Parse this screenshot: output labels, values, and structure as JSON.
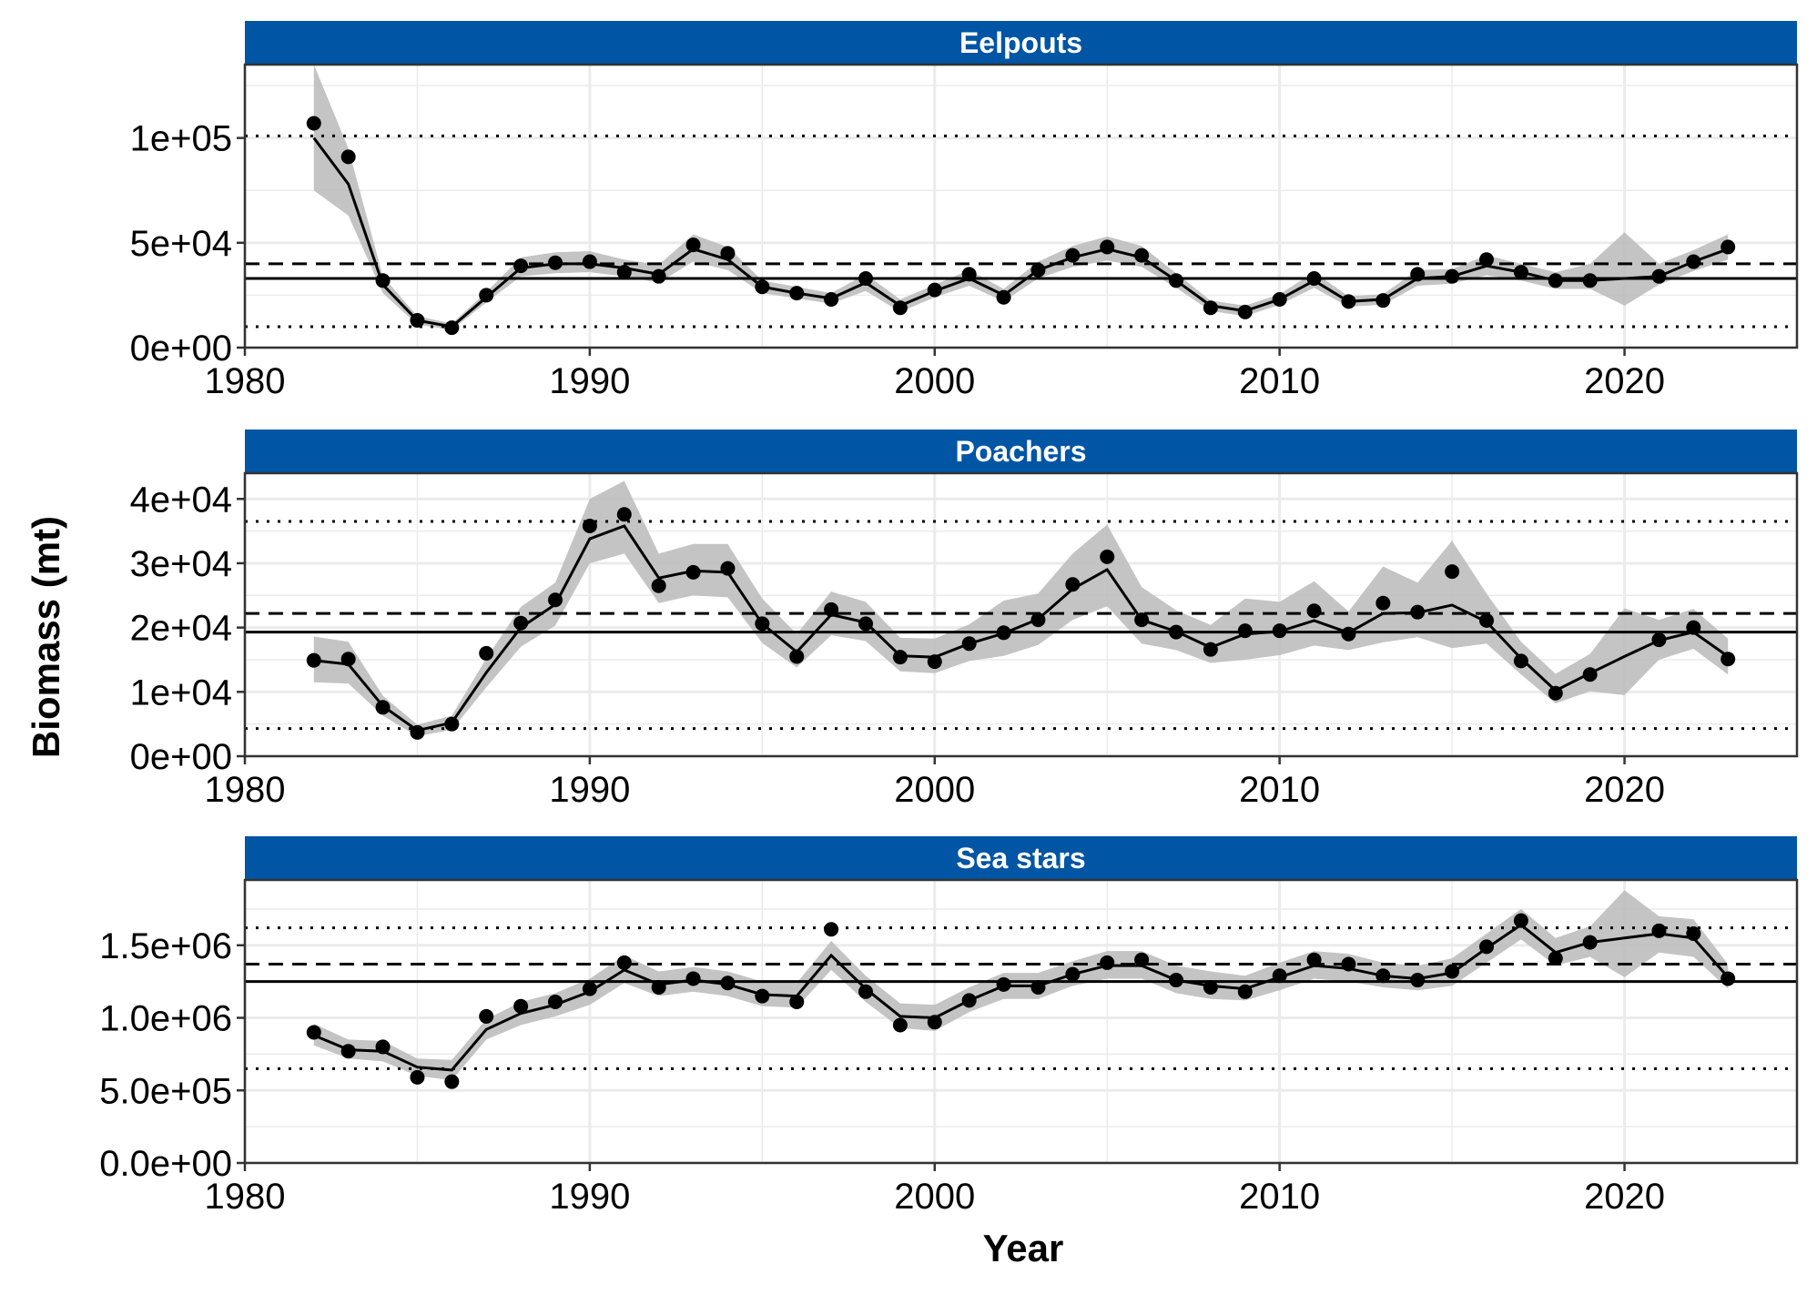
{
  "chart_data": {
    "type": "line",
    "xlabel": "Year",
    "ylabel": "Biomass (mt)",
    "xlim": [
      1980,
      2025
    ],
    "x_ticks": [
      1980,
      1990,
      2000,
      2010,
      2020
    ],
    "colors": {
      "strip": "#0055A4",
      "band": "#BEBEBE",
      "line": "#000000",
      "grid": "#EBEBEB"
    },
    "panels": [
      {
        "title": "Eelpouts",
        "ylim": [
          0,
          135000
        ],
        "y_ticks": [
          0,
          50000,
          100000
        ],
        "y_tick_labels": [
          "0e+00",
          "5e+04",
          "1e+05"
        ],
        "ref_lines": {
          "mean": 33000,
          "upper_dashed": 40000,
          "upper_dotted": 101000,
          "lower_dotted": 10000
        },
        "points": {
          "x": [
            1982,
            1983,
            1984,
            1985,
            1986,
            1987,
            1988,
            1989,
            1990,
            1991,
            1992,
            1993,
            1994,
            1995,
            1996,
            1997,
            1998,
            1999,
            2000,
            2001,
            2002,
            2003,
            2004,
            2005,
            2006,
            2007,
            2008,
            2009,
            2010,
            2011,
            2012,
            2013,
            2014,
            2015,
            2016,
            2017,
            2018,
            2019,
            2021,
            2022,
            2023
          ],
          "y": [
            107000,
            91000,
            32000,
            13000,
            9500,
            25000,
            39000,
            40500,
            41000,
            36000,
            34000,
            49000,
            45000,
            29000,
            26000,
            23000,
            33000,
            19000,
            27500,
            35000,
            24000,
            37000,
            44000,
            48000,
            44000,
            32000,
            19000,
            17000,
            23000,
            33000,
            22000,
            22500,
            35000,
            34000,
            42000,
            36000,
            32000,
            32000,
            34000,
            41000,
            48000
          ]
        },
        "fit": {
          "x": [
            1982,
            1983,
            1984,
            1985,
            1986,
            1987,
            1988,
            1989,
            1990,
            1991,
            1992,
            1993,
            1994,
            1995,
            1996,
            1997,
            1998,
            1999,
            2000,
            2001,
            2002,
            2003,
            2004,
            2005,
            2006,
            2007,
            2008,
            2009,
            2010,
            2011,
            2012,
            2013,
            2014,
            2015,
            2016,
            2017,
            2018,
            2019,
            2020,
            2021,
            2022,
            2023
          ],
          "y": [
            100000,
            78000,
            30000,
            13000,
            10000,
            24000,
            38000,
            40000,
            40000,
            38000,
            35000,
            47000,
            42000,
            29000,
            26000,
            23500,
            31000,
            20000,
            27000,
            33000,
            25000,
            37000,
            43000,
            47000,
            43000,
            32000,
            20000,
            17500,
            23000,
            32000,
            22000,
            23000,
            33000,
            34000,
            39000,
            36000,
            32000,
            32000,
            33000,
            34000,
            41000,
            47000
          ],
          "lower": [
            75000,
            63000,
            26000,
            11000,
            8500,
            21500,
            34000,
            35500,
            36000,
            34000,
            31000,
            41000,
            37000,
            26000,
            23500,
            21000,
            27000,
            17000,
            24000,
            29500,
            22000,
            33000,
            38500,
            41500,
            38500,
            28500,
            17500,
            15000,
            20500,
            28500,
            19500,
            20500,
            29500,
            30500,
            34500,
            32000,
            28000,
            28000,
            20000,
            30000,
            36500,
            42000
          ],
          "upper": [
            135000,
            95000,
            34000,
            15000,
            11500,
            26500,
            43000,
            45500,
            46000,
            42000,
            39500,
            54000,
            48000,
            32000,
            29000,
            26000,
            35000,
            23000,
            30000,
            37000,
            28000,
            41000,
            48500,
            53000,
            48500,
            35500,
            22500,
            20000,
            25500,
            36000,
            24500,
            25500,
            37000,
            37500,
            44000,
            40000,
            36000,
            40000,
            55000,
            40000,
            46500,
            54000
          ]
        }
      },
      {
        "title": "Poachers",
        "ylim": [
          0,
          44000
        ],
        "y_ticks": [
          0,
          10000,
          20000,
          30000,
          40000
        ],
        "y_tick_labels": [
          "0e+00",
          "1e+04",
          "2e+04",
          "3e+04",
          "4e+04"
        ],
        "ref_lines": {
          "mean": 19300,
          "upper_dashed": 22200,
          "upper_dotted": 36500,
          "lower_dotted": 4300
        },
        "points": {
          "x": [
            1982,
            1983,
            1984,
            1985,
            1986,
            1987,
            1988,
            1989,
            1990,
            1991,
            1992,
            1993,
            1994,
            1995,
            1996,
            1997,
            1998,
            1999,
            2000,
            2001,
            2002,
            2003,
            2004,
            2005,
            2006,
            2007,
            2008,
            2009,
            2010,
            2011,
            2012,
            2013,
            2014,
            2015,
            2016,
            2017,
            2018,
            2019,
            2021,
            2022,
            2023
          ],
          "y": [
            14900,
            15100,
            7600,
            3700,
            5000,
            16000,
            20700,
            24300,
            35800,
            37600,
            26500,
            28600,
            29200,
            20600,
            15500,
            22800,
            20600,
            15400,
            14700,
            17500,
            19200,
            21200,
            26700,
            31000,
            21200,
            19300,
            16600,
            19500,
            19500,
            22600,
            19000,
            23800,
            22400,
            28700,
            21100,
            14800,
            9800,
            12700,
            18100,
            20000,
            15100
          ]
        },
        "fit": {
          "x": [
            1982,
            1983,
            1984,
            1985,
            1986,
            1987,
            1988,
            1989,
            1990,
            1991,
            1992,
            1993,
            1994,
            1995,
            1996,
            1997,
            1998,
            1999,
            2000,
            2001,
            2002,
            2003,
            2004,
            2005,
            2006,
            2007,
            2008,
            2009,
            2010,
            2011,
            2012,
            2013,
            2014,
            2015,
            2016,
            2017,
            2018,
            2019,
            2020,
            2021,
            2022,
            2023
          ],
          "y": [
            14900,
            14300,
            7800,
            4000,
            5200,
            13000,
            20000,
            23600,
            33800,
            35800,
            27700,
            28800,
            28600,
            20600,
            16200,
            22000,
            20800,
            15600,
            15400,
            17500,
            19100,
            21300,
            26000,
            29000,
            21200,
            19400,
            16900,
            19000,
            19400,
            21100,
            19200,
            22200,
            22300,
            23500,
            20900,
            15200,
            10200,
            12900,
            15500,
            18000,
            19300,
            15500
          ],
          "lower": [
            11500,
            11300,
            6300,
            3100,
            4100,
            10700,
            17000,
            20300,
            30000,
            31500,
            23800,
            25000,
            24700,
            17600,
            13800,
            18800,
            17900,
            13200,
            12900,
            14800,
            15600,
            17300,
            21200,
            23300,
            17500,
            16500,
            14500,
            15000,
            15700,
            17200,
            16500,
            17700,
            18500,
            16800,
            17500,
            12700,
            8200,
            10100,
            9500,
            15000,
            16700,
            12700
          ],
          "upper": [
            18600,
            17800,
            9400,
            4900,
            6300,
            15200,
            23200,
            27000,
            40000,
            42800,
            31500,
            33000,
            33000,
            24500,
            19000,
            25600,
            24000,
            18400,
            18300,
            20500,
            24200,
            25300,
            31500,
            36000,
            26300,
            22700,
            20400,
            24500,
            24000,
            27200,
            22500,
            29500,
            27000,
            33500,
            25300,
            17800,
            12800,
            15900,
            23000,
            21200,
            22900,
            18300
          ]
        }
      },
      {
        "title": "Sea stars",
        "ylim": [
          0,
          1950000
        ],
        "y_ticks": [
          0,
          500000,
          1000000,
          1500000
        ],
        "y_tick_labels": [
          "0.0e+00",
          "5.0e+05",
          "1.0e+06",
          "1.5e+06"
        ],
        "ref_lines": {
          "mean": 1250000,
          "upper_dashed": 1370000,
          "upper_dotted": 1620000,
          "lower_dotted": 650000
        },
        "points": {
          "x": [
            1982,
            1983,
            1984,
            1985,
            1986,
            1987,
            1988,
            1989,
            1990,
            1991,
            1992,
            1993,
            1994,
            1995,
            1996,
            1997,
            1998,
            1999,
            2000,
            2001,
            2002,
            2003,
            2004,
            2005,
            2006,
            2007,
            2008,
            2009,
            2010,
            2011,
            2012,
            2013,
            2014,
            2015,
            2016,
            2017,
            2018,
            2019,
            2021,
            2022,
            2023
          ],
          "y": [
            900000,
            770000,
            800000,
            590000,
            560000,
            1010000,
            1080000,
            1110000,
            1200000,
            1380000,
            1210000,
            1270000,
            1240000,
            1150000,
            1110000,
            1610000,
            1180000,
            950000,
            970000,
            1120000,
            1230000,
            1210000,
            1300000,
            1380000,
            1400000,
            1260000,
            1210000,
            1180000,
            1290000,
            1400000,
            1370000,
            1290000,
            1260000,
            1320000,
            1490000,
            1670000,
            1410000,
            1520000,
            1600000,
            1580000,
            1270000
          ]
        },
        "fit": {
          "x": [
            1982,
            1983,
            1984,
            1985,
            1986,
            1987,
            1988,
            1989,
            1990,
            1991,
            1992,
            1993,
            1994,
            1995,
            1996,
            1997,
            1998,
            1999,
            2000,
            2001,
            2002,
            2003,
            2004,
            2005,
            2006,
            2007,
            2008,
            2009,
            2010,
            2011,
            2012,
            2013,
            2014,
            2015,
            2016,
            2017,
            2018,
            2019,
            2020,
            2021,
            2022,
            2023
          ],
          "y": [
            880000,
            780000,
            770000,
            660000,
            640000,
            920000,
            1030000,
            1090000,
            1180000,
            1330000,
            1230000,
            1260000,
            1230000,
            1160000,
            1150000,
            1430000,
            1200000,
            1010000,
            1000000,
            1120000,
            1220000,
            1220000,
            1300000,
            1360000,
            1360000,
            1260000,
            1220000,
            1200000,
            1280000,
            1360000,
            1340000,
            1290000,
            1270000,
            1310000,
            1480000,
            1640000,
            1450000,
            1520000,
            1550000,
            1580000,
            1550000,
            1280000
          ],
          "lower": [
            810000,
            720000,
            700000,
            600000,
            570000,
            850000,
            950000,
            1010000,
            1090000,
            1240000,
            1150000,
            1180000,
            1150000,
            1080000,
            1070000,
            1330000,
            1110000,
            930000,
            910000,
            1040000,
            1130000,
            1130000,
            1220000,
            1270000,
            1270000,
            1170000,
            1130000,
            1120000,
            1190000,
            1270000,
            1250000,
            1210000,
            1190000,
            1220000,
            1380000,
            1540000,
            1360000,
            1420000,
            1280000,
            1450000,
            1420000,
            1200000
          ],
          "upper": [
            960000,
            850000,
            840000,
            720000,
            710000,
            990000,
            1110000,
            1170000,
            1270000,
            1430000,
            1320000,
            1350000,
            1320000,
            1250000,
            1240000,
            1530000,
            1290000,
            1100000,
            1090000,
            1210000,
            1310000,
            1310000,
            1390000,
            1460000,
            1460000,
            1360000,
            1320000,
            1290000,
            1380000,
            1460000,
            1440000,
            1380000,
            1360000,
            1410000,
            1580000,
            1750000,
            1550000,
            1630000,
            1880000,
            1700000,
            1680000,
            1370000
          ]
        }
      }
    ]
  }
}
